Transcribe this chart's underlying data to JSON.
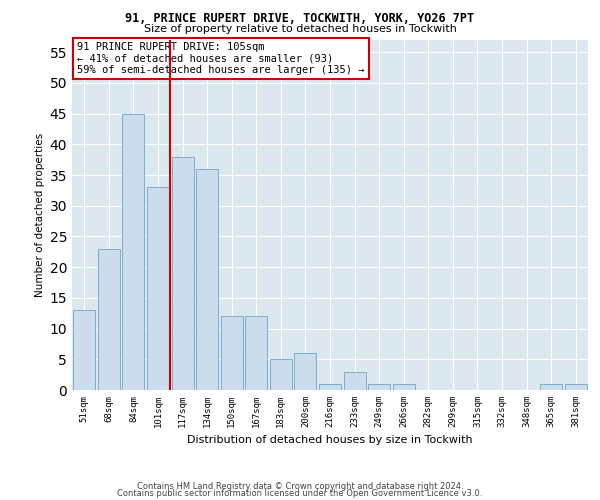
{
  "title1": "91, PRINCE RUPERT DRIVE, TOCKWITH, YORK, YO26 7PT",
  "title2": "Size of property relative to detached houses in Tockwith",
  "xlabel": "Distribution of detached houses by size in Tockwith",
  "ylabel": "Number of detached properties",
  "categories": [
    "51sqm",
    "68sqm",
    "84sqm",
    "101sqm",
    "117sqm",
    "134sqm",
    "150sqm",
    "167sqm",
    "183sqm",
    "200sqm",
    "216sqm",
    "233sqm",
    "249sqm",
    "266sqm",
    "282sqm",
    "299sqm",
    "315sqm",
    "332sqm",
    "348sqm",
    "365sqm",
    "381sqm"
  ],
  "values": [
    13,
    23,
    45,
    33,
    38,
    36,
    12,
    12,
    5,
    6,
    1,
    3,
    1,
    1,
    0,
    0,
    0,
    0,
    0,
    1,
    1
  ],
  "bar_color": "#ccdcec",
  "bar_edge_color": "#7aaed0",
  "vline_x": 3.5,
  "vline_color": "#cc0000",
  "annotation_text": "91 PRINCE RUPERT DRIVE: 105sqm\n← 41% of detached houses are smaller (93)\n59% of semi-detached houses are larger (135) →",
  "annotation_box_color": "white",
  "annotation_box_edge_color": "#cc0000",
  "ylim": [
    0,
    57
  ],
  "yticks": [
    0,
    5,
    10,
    15,
    20,
    25,
    30,
    35,
    40,
    45,
    50,
    55
  ],
  "background_color": "#dce8f0",
  "footer1": "Contains HM Land Registry data © Crown copyright and database right 2024.",
  "footer2": "Contains public sector information licensed under the Open Government Licence v3.0."
}
